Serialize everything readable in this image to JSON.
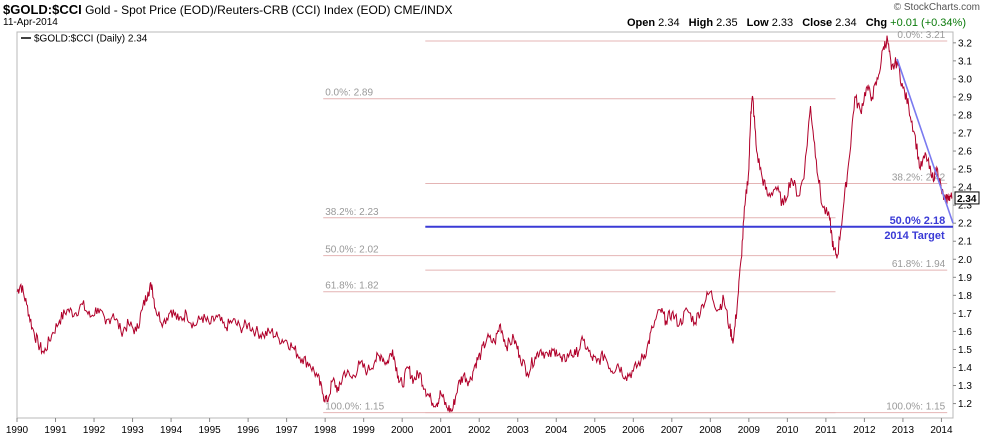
{
  "header": {
    "symbol": "$GOLD:$CCI",
    "description": "Gold - Spot Price (EOD)/Reuters-CRB (CCI) Index (EOD)",
    "exchange": "CME/INDX",
    "date": "11-Apr-2014",
    "brand": "© StockCharts.com",
    "open_label": "Open",
    "open": "2.34",
    "high_label": "High",
    "high": "2.35",
    "low_label": "Low",
    "low": "2.33",
    "close_label": "Close",
    "close": "2.34",
    "chg_label": "Chg",
    "chg": "+0.01 (+0.34%)"
  },
  "chart_data": {
    "type": "line",
    "legend": "$GOLD:$CCI (Daily) 2.34",
    "last_value": "2.34",
    "x_range": [
      1990.0,
      2014.3
    ],
    "ylim": [
      1.12,
      3.26
    ],
    "y_ticks": [
      "1.2",
      "1.3",
      "1.4",
      "1.5",
      "1.6",
      "1.7",
      "1.8",
      "1.9",
      "2.0",
      "2.1",
      "2.2",
      "2.3",
      "2.4",
      "2.5",
      "2.6",
      "2.7",
      "2.8",
      "2.9",
      "3.0",
      "3.1",
      "3.2"
    ],
    "x_ticks": [
      "1990",
      "1991",
      "1992",
      "1993",
      "1994",
      "1995",
      "1996",
      "1997",
      "1998",
      "1999",
      "2000",
      "2001",
      "2002",
      "2003",
      "2004",
      "2005",
      "2006",
      "2007",
      "2008",
      "2009",
      "2010",
      "2011",
      "2012",
      "2013",
      "2014"
    ],
    "series_color": "#b0002a",
    "points": [
      [
        1990.0,
        1.82
      ],
      [
        1990.1,
        1.86
      ],
      [
        1990.25,
        1.75
      ],
      [
        1990.4,
        1.62
      ],
      [
        1990.55,
        1.53
      ],
      [
        1990.7,
        1.48
      ],
      [
        1990.9,
        1.58
      ],
      [
        1991.1,
        1.66
      ],
      [
        1991.3,
        1.72
      ],
      [
        1991.5,
        1.7
      ],
      [
        1991.7,
        1.75
      ],
      [
        1991.9,
        1.68
      ],
      [
        1992.1,
        1.73
      ],
      [
        1992.3,
        1.64
      ],
      [
        1992.5,
        1.7
      ],
      [
        1992.7,
        1.6
      ],
      [
        1992.9,
        1.64
      ],
      [
        1993.1,
        1.6
      ],
      [
        1993.25,
        1.72
      ],
      [
        1993.4,
        1.82
      ],
      [
        1993.5,
        1.86
      ],
      [
        1993.6,
        1.72
      ],
      [
        1993.8,
        1.65
      ],
      [
        1994.0,
        1.72
      ],
      [
        1994.2,
        1.66
      ],
      [
        1994.4,
        1.7
      ],
      [
        1994.6,
        1.63
      ],
      [
        1994.8,
        1.68
      ],
      [
        1995.0,
        1.64
      ],
      [
        1995.2,
        1.68
      ],
      [
        1995.4,
        1.62
      ],
      [
        1995.6,
        1.66
      ],
      [
        1995.8,
        1.62
      ],
      [
        1996.0,
        1.64
      ],
      [
        1996.2,
        1.6
      ],
      [
        1996.4,
        1.58
      ],
      [
        1996.6,
        1.6
      ],
      [
        1996.8,
        1.56
      ],
      [
        1997.0,
        1.55
      ],
      [
        1997.2,
        1.5
      ],
      [
        1997.4,
        1.45
      ],
      [
        1997.6,
        1.42
      ],
      [
        1997.8,
        1.35
      ],
      [
        1997.95,
        1.25
      ],
      [
        1998.05,
        1.21
      ],
      [
        1998.2,
        1.33
      ],
      [
        1998.35,
        1.27
      ],
      [
        1998.5,
        1.38
      ],
      [
        1998.7,
        1.34
      ],
      [
        1998.9,
        1.42
      ],
      [
        1999.1,
        1.38
      ],
      [
        1999.3,
        1.44
      ],
      [
        1999.45,
        1.47
      ],
      [
        1999.6,
        1.42
      ],
      [
        1999.75,
        1.5
      ],
      [
        1999.9,
        1.35
      ],
      [
        2000.0,
        1.3
      ],
      [
        2000.15,
        1.4
      ],
      [
        2000.3,
        1.33
      ],
      [
        2000.45,
        1.37
      ],
      [
        2000.6,
        1.28
      ],
      [
        2000.75,
        1.22
      ],
      [
        2000.9,
        1.2
      ],
      [
        2001.0,
        1.26
      ],
      [
        2001.15,
        1.18
      ],
      [
        2001.3,
        1.16
      ],
      [
        2001.45,
        1.3
      ],
      [
        2001.6,
        1.36
      ],
      [
        2001.75,
        1.32
      ],
      [
        2001.9,
        1.42
      ],
      [
        2002.05,
        1.48
      ],
      [
        2002.2,
        1.56
      ],
      [
        2002.4,
        1.54
      ],
      [
        2002.55,
        1.64
      ],
      [
        2002.7,
        1.52
      ],
      [
        2002.9,
        1.56
      ],
      [
        2003.05,
        1.47
      ],
      [
        2003.25,
        1.37
      ],
      [
        2003.45,
        1.46
      ],
      [
        2003.6,
        1.5
      ],
      [
        2003.8,
        1.46
      ],
      [
        2004.0,
        1.5
      ],
      [
        2004.15,
        1.43
      ],
      [
        2004.35,
        1.48
      ],
      [
        2004.5,
        1.47
      ],
      [
        2004.7,
        1.55
      ],
      [
        2004.9,
        1.46
      ],
      [
        2005.05,
        1.43
      ],
      [
        2005.25,
        1.47
      ],
      [
        2005.45,
        1.38
      ],
      [
        2005.6,
        1.42
      ],
      [
        2005.8,
        1.35
      ],
      [
        2006.0,
        1.38
      ],
      [
        2006.2,
        1.44
      ],
      [
        2006.35,
        1.5
      ],
      [
        2006.5,
        1.62
      ],
      [
        2006.7,
        1.72
      ],
      [
        2006.85,
        1.66
      ],
      [
        2007.0,
        1.7
      ],
      [
        2007.2,
        1.64
      ],
      [
        2007.4,
        1.72
      ],
      [
        2007.6,
        1.65
      ],
      [
        2007.8,
        1.75
      ],
      [
        2008.0,
        1.82
      ],
      [
        2008.2,
        1.72
      ],
      [
        2008.35,
        1.78
      ],
      [
        2008.5,
        1.62
      ],
      [
        2008.6,
        1.55
      ],
      [
        2008.7,
        1.75
      ],
      [
        2008.8,
        2.0
      ],
      [
        2008.9,
        2.3
      ],
      [
        2009.0,
        2.5
      ],
      [
        2009.05,
        2.82
      ],
      [
        2009.1,
        2.9
      ],
      [
        2009.2,
        2.6
      ],
      [
        2009.35,
        2.45
      ],
      [
        2009.5,
        2.35
      ],
      [
        2009.7,
        2.4
      ],
      [
        2009.9,
        2.3
      ],
      [
        2010.1,
        2.45
      ],
      [
        2010.3,
        2.35
      ],
      [
        2010.45,
        2.5
      ],
      [
        2010.6,
        2.85
      ],
      [
        2010.75,
        2.55
      ],
      [
        2010.9,
        2.3
      ],
      [
        2011.1,
        2.22
      ],
      [
        2011.2,
        2.05
      ],
      [
        2011.3,
        2.02
      ],
      [
        2011.45,
        2.28
      ],
      [
        2011.6,
        2.55
      ],
      [
        2011.75,
        2.9
      ],
      [
        2011.9,
        2.82
      ],
      [
        2012.05,
        2.95
      ],
      [
        2012.2,
        2.9
      ],
      [
        2012.35,
        3.0
      ],
      [
        2012.5,
        3.18
      ],
      [
        2012.6,
        3.22
      ],
      [
        2012.7,
        3.05
      ],
      [
        2012.85,
        3.1
      ],
      [
        2013.0,
        2.95
      ],
      [
        2013.15,
        2.85
      ],
      [
        2013.3,
        2.7
      ],
      [
        2013.45,
        2.5
      ],
      [
        2013.6,
        2.58
      ],
      [
        2013.75,
        2.45
      ],
      [
        2013.9,
        2.5
      ],
      [
        2014.0,
        2.38
      ],
      [
        2014.1,
        2.32
      ],
      [
        2014.2,
        2.35
      ],
      [
        2014.28,
        2.34
      ]
    ],
    "fib_levels": [
      {
        "label": "0.0%: 2.89",
        "value": 2.89,
        "x_from": 1997.95,
        "x_to": 2011.25
      },
      {
        "label": "38.2%: 2.23",
        "value": 2.23,
        "x_from": 1997.95,
        "x_to": 2011.25
      },
      {
        "label": "50.0%: 2.02",
        "value": 2.02,
        "x_from": 1997.95,
        "x_to": 2011.25
      },
      {
        "label": "61.8%: 1.82",
        "value": 1.82,
        "x_from": 1997.95,
        "x_to": 2011.25
      },
      {
        "label": "100.0%: 1.15",
        "value": 1.15,
        "x_from": 1997.95,
        "x_to": 2011.25
      },
      {
        "label": "0.0%: 3.21",
        "value": 3.21,
        "x_from": 2000.6,
        "x_to": 2014.15
      },
      {
        "label": "38.2%: 2.42",
        "value": 2.42,
        "x_from": 2000.6,
        "x_to": 2014.15
      },
      {
        "label": "50.0% 2.18",
        "value": 2.18,
        "x_from": 2000.6,
        "x_to": 2014.15
      },
      {
        "label": "61.8%: 1.94",
        "value": 1.94,
        "x_from": 2000.6,
        "x_to": 2014.15
      },
      {
        "label": "100.0%: 1.15",
        "value": 1.15,
        "x_from": 2000.6,
        "x_to": 2014.15
      }
    ],
    "target_line": {
      "value": 2.18,
      "x_from": 2000.6,
      "x_to": 2014.3,
      "color": "#3a3ad6"
    },
    "target_label": "2014 Target",
    "trend_line": {
      "from": [
        2012.85,
        3.11
      ],
      "to": [
        2014.3,
        2.2
      ],
      "color": "#7a7af0"
    }
  }
}
